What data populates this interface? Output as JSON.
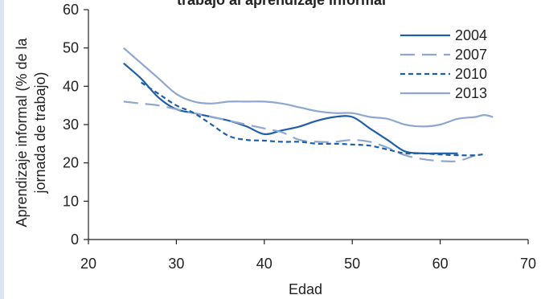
{
  "chart_data": {
    "type": "line",
    "title": "trabajo al aprendizaje informal",
    "xlabel": "Edad",
    "ylabel_lines": [
      "Aprendizaje informal (% de la",
      "jornada de trabajo)"
    ],
    "xlim": [
      20,
      70
    ],
    "ylim": [
      0,
      60
    ],
    "x_ticks": [
      20,
      30,
      40,
      50,
      60,
      70
    ],
    "y_ticks": [
      0,
      10,
      20,
      30,
      40,
      50,
      60
    ],
    "grid": false,
    "legend_position": "top-right",
    "series": [
      {
        "name": "2004",
        "color": "#1f5fa8",
        "dash": "solid",
        "points": [
          [
            24,
            46
          ],
          [
            26,
            42
          ],
          [
            28,
            37
          ],
          [
            30,
            34
          ],
          [
            32,
            33
          ],
          [
            34,
            32
          ],
          [
            36,
            31
          ],
          [
            38,
            29.5
          ],
          [
            40,
            27.5
          ],
          [
            42,
            28.5
          ],
          [
            44,
            29.5
          ],
          [
            46,
            31
          ],
          [
            48,
            32
          ],
          [
            50,
            32
          ],
          [
            52,
            29
          ],
          [
            54,
            26
          ],
          [
            56,
            23
          ],
          [
            58,
            22.5
          ],
          [
            60,
            22.5
          ],
          [
            62,
            22.5
          ]
        ]
      },
      {
        "name": "2007",
        "color": "#8ea7d0",
        "dash": "long",
        "points": [
          [
            24,
            36
          ],
          [
            26,
            35.5
          ],
          [
            28,
            35
          ],
          [
            30,
            34
          ],
          [
            32,
            33
          ],
          [
            34,
            32
          ],
          [
            36,
            31
          ],
          [
            38,
            30
          ],
          [
            40,
            29
          ],
          [
            42,
            28
          ],
          [
            44,
            26
          ],
          [
            46,
            25.5
          ],
          [
            48,
            25.5
          ],
          [
            50,
            26
          ],
          [
            52,
            25.5
          ],
          [
            54,
            24
          ],
          [
            56,
            22
          ],
          [
            58,
            21
          ],
          [
            60,
            20.5
          ],
          [
            62,
            20.5
          ],
          [
            64,
            22
          ]
        ]
      },
      {
        "name": "2010",
        "color": "#1f5fa8",
        "dash": "short",
        "points": [
          [
            26,
            41
          ],
          [
            28,
            38
          ],
          [
            30,
            35
          ],
          [
            32,
            33
          ],
          [
            34,
            30
          ],
          [
            36,
            27
          ],
          [
            38,
            26
          ],
          [
            40,
            25.8
          ],
          [
            42,
            25.5
          ],
          [
            44,
            25.5
          ],
          [
            46,
            25
          ],
          [
            48,
            25
          ],
          [
            50,
            24.8
          ],
          [
            52,
            24.5
          ],
          [
            54,
            23.5
          ],
          [
            56,
            22.5
          ],
          [
            58,
            22.5
          ],
          [
            60,
            22.2
          ],
          [
            62,
            22
          ],
          [
            64,
            22
          ],
          [
            65,
            22.3
          ]
        ]
      },
      {
        "name": "2013",
        "color": "#8ea7d0",
        "dash": "solid",
        "points": [
          [
            24,
            50
          ],
          [
            26,
            46
          ],
          [
            28,
            42
          ],
          [
            30,
            38
          ],
          [
            32,
            36
          ],
          [
            34,
            35.5
          ],
          [
            36,
            36
          ],
          [
            38,
            36
          ],
          [
            40,
            36
          ],
          [
            42,
            35.5
          ],
          [
            44,
            34.5
          ],
          [
            46,
            33.5
          ],
          [
            48,
            33
          ],
          [
            50,
            33
          ],
          [
            52,
            32
          ],
          [
            54,
            31.5
          ],
          [
            56,
            30
          ],
          [
            58,
            29.5
          ],
          [
            60,
            30
          ],
          [
            62,
            31.5
          ],
          [
            64,
            32
          ],
          [
            65,
            32.5
          ],
          [
            66,
            32
          ]
        ]
      }
    ]
  }
}
